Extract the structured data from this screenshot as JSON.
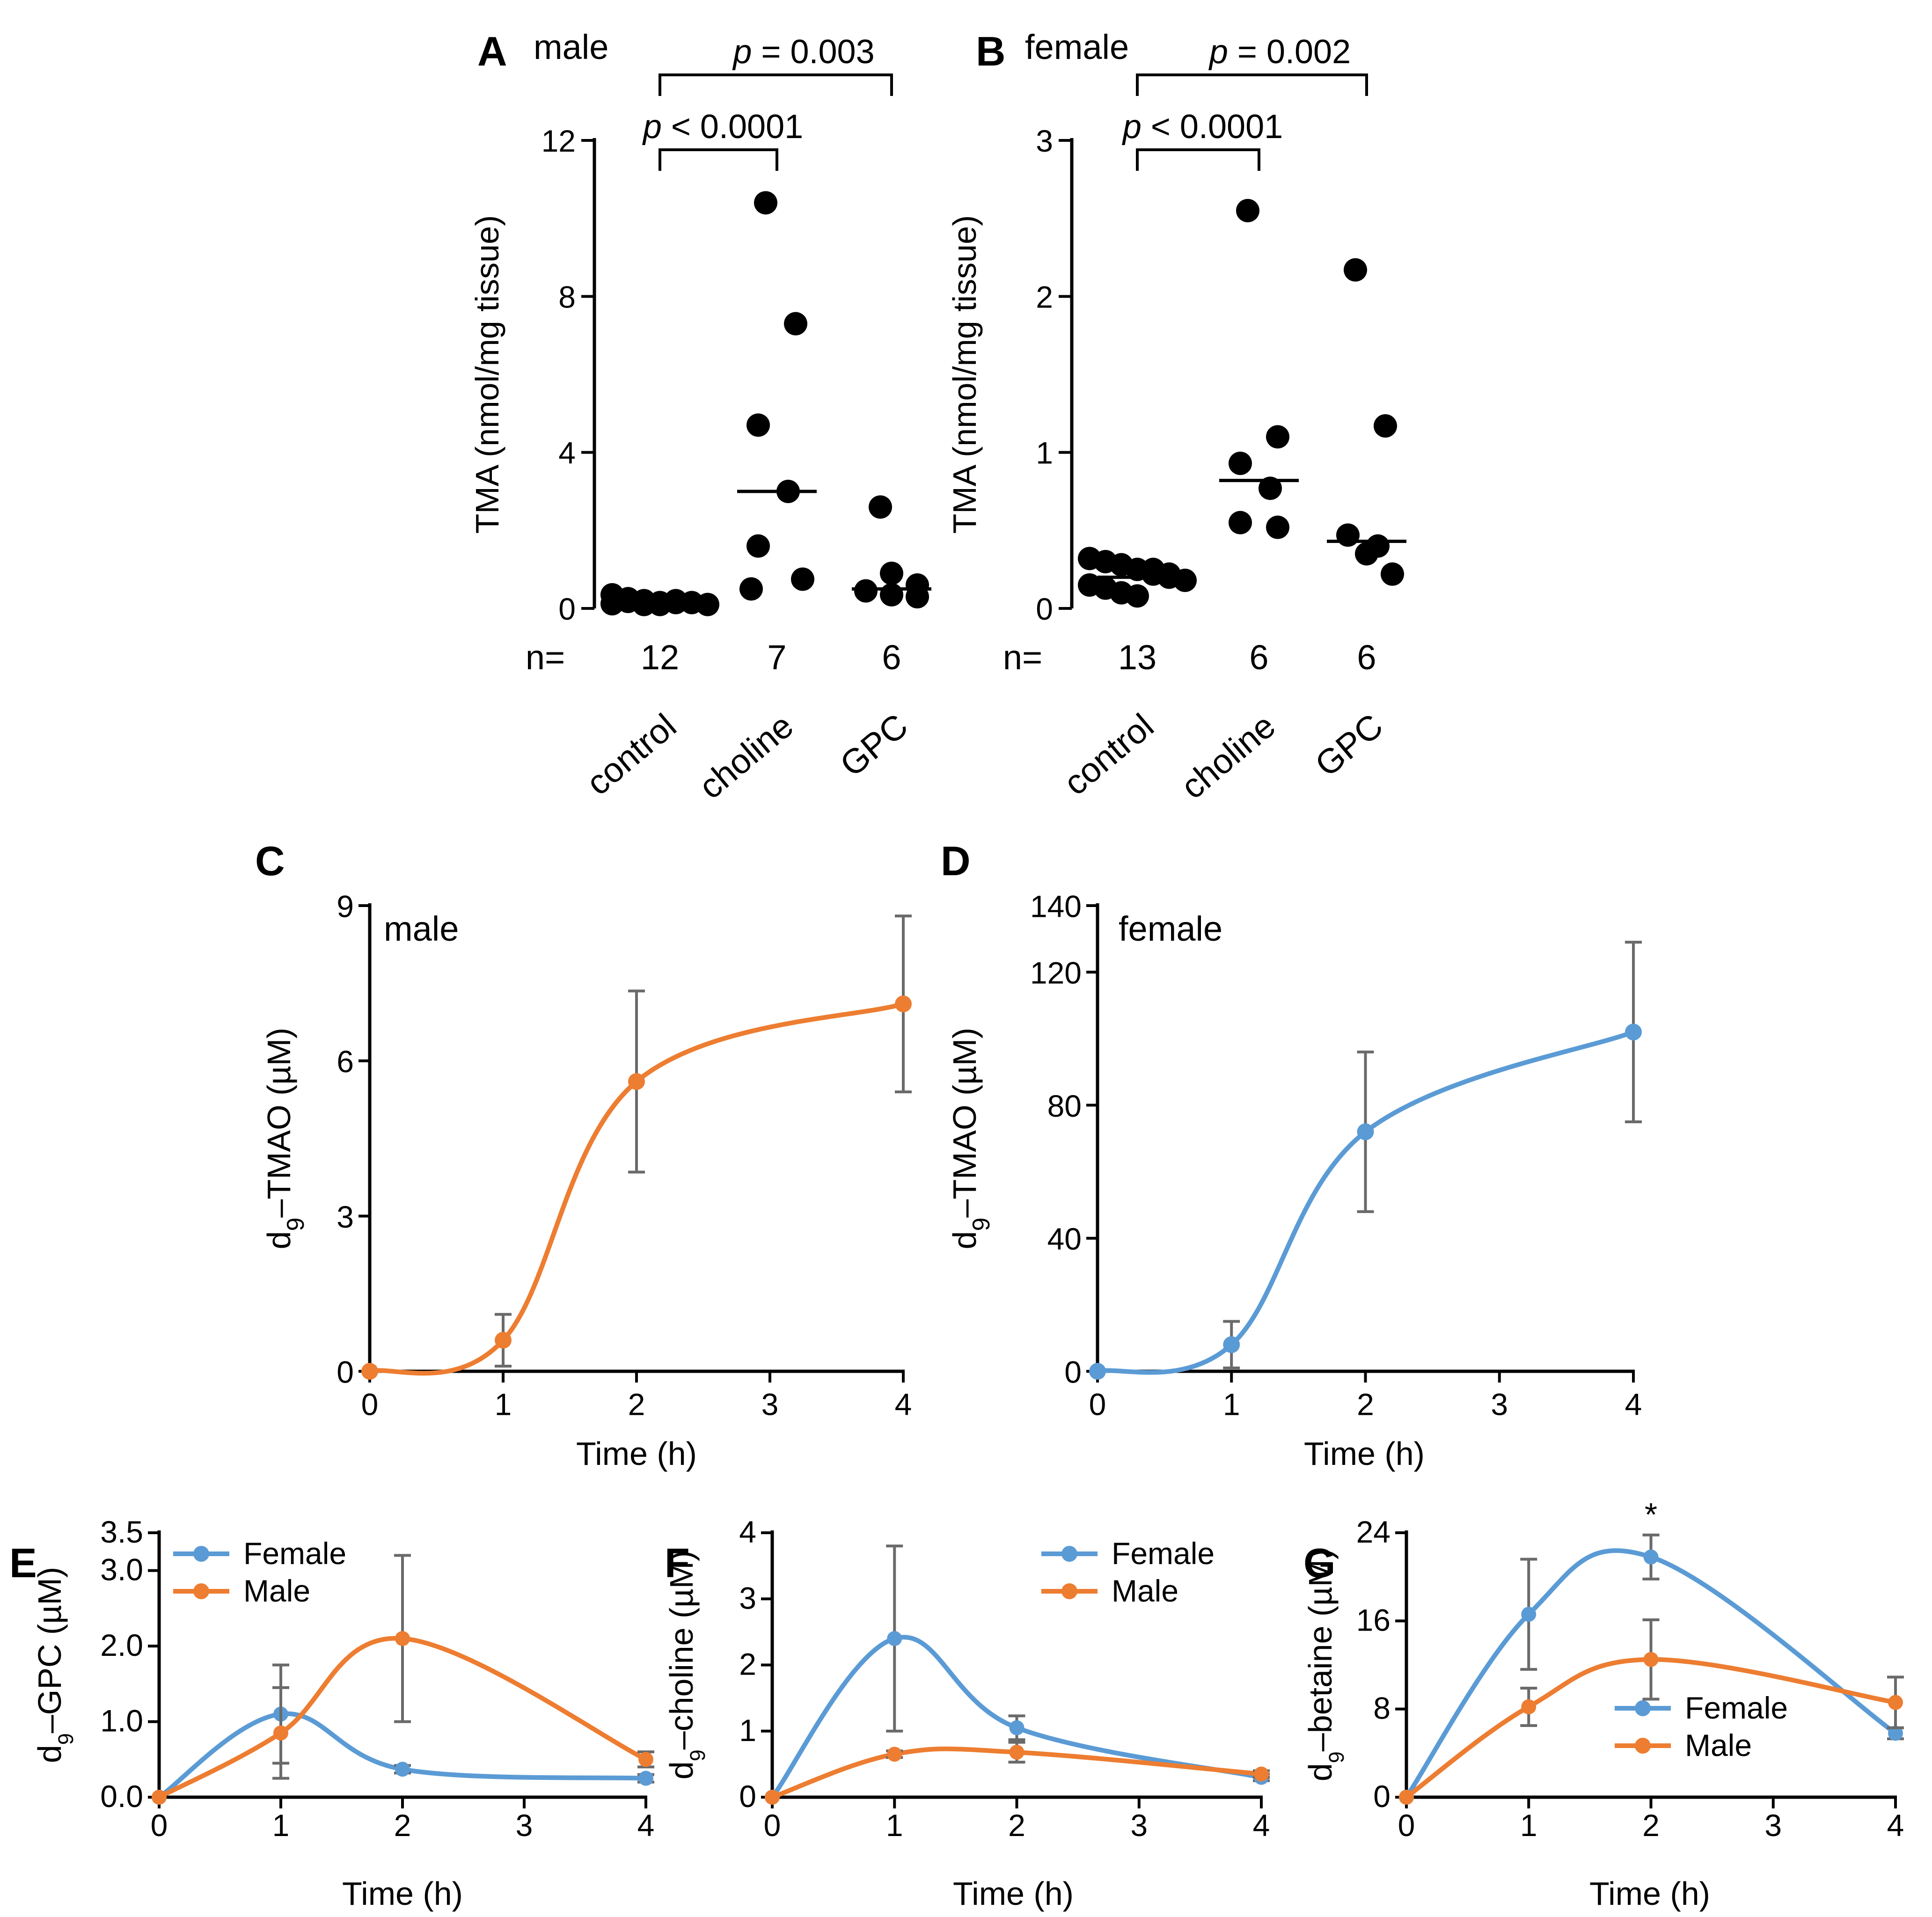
{
  "colors": {
    "female": "#5b9bd5",
    "male": "#ed7d31",
    "dots": "#000000",
    "error": "#6a6a6a"
  },
  "chart_data": [
    {
      "id": "A",
      "type": "scatter",
      "panel_letter": "A",
      "subtitle": "male",
      "ylabel": "TMA (nmol/mg tissue)",
      "ylim": [
        0,
        12
      ],
      "yticks": [
        0,
        4,
        8,
        12
      ],
      "categories": [
        "control",
        "choline",
        "GPC"
      ],
      "n_label": "n=",
      "n": [
        "12",
        "7",
        "6"
      ],
      "points": [
        [
          0.35,
          0.25,
          0.2,
          0.15,
          0.2,
          0.15,
          0.1,
          0.12,
          0.18,
          0.1,
          0.1,
          0.15
        ],
        [
          10.4,
          7.3,
          4.7,
          3.0,
          1.6,
          0.75,
          0.5
        ],
        [
          2.6,
          0.9,
          0.6,
          0.45,
          0.35,
          0.3
        ]
      ],
      "medians": [
        0.15,
        3.0,
        0.5
      ],
      "brackets": [
        {
          "from": 0,
          "to": 1,
          "label": "p < 0.0001"
        },
        {
          "from": 0,
          "to": 2,
          "label": "p = 0.003"
        }
      ]
    },
    {
      "id": "B",
      "type": "scatter",
      "panel_letter": "B",
      "subtitle": "female",
      "ylabel": "TMA (nmol/mg tissue)",
      "ylim": [
        0,
        3
      ],
      "yticks": [
        0,
        1,
        2,
        3
      ],
      "categories": [
        "control",
        "choline",
        "GPC"
      ],
      "n_label": "n=",
      "n": [
        "13",
        "6",
        "6"
      ],
      "points": [
        [
          0.32,
          0.3,
          0.28,
          0.25,
          0.22,
          0.2,
          0.18,
          0.15,
          0.13,
          0.1,
          0.08,
          0.25,
          0.22
        ],
        [
          2.55,
          1.1,
          0.93,
          0.77,
          0.55,
          0.52
        ],
        [
          2.17,
          1.17,
          0.47,
          0.4,
          0.35,
          0.22
        ]
      ],
      "medians": [
        0.2,
        0.82,
        0.43
      ],
      "brackets": [
        {
          "from": 0,
          "to": 1,
          "label": "p < 0.0001"
        },
        {
          "from": 0,
          "to": 2,
          "label": "p = 0.002"
        }
      ]
    },
    {
      "id": "C",
      "type": "line",
      "panel_letter": "C",
      "subtitle": "male",
      "xlabel": "Time (h)",
      "ylabel_main": "d",
      "ylabel_sub": "9",
      "ylabel_rest": "–TMAO (µM)",
      "x": [
        0,
        1,
        2,
        4
      ],
      "xticks": [
        0,
        1,
        2,
        3,
        4
      ],
      "ylim": [
        0,
        9
      ],
      "yticks": [
        0,
        3,
        6,
        9
      ],
      "series": [
        {
          "name": "Male",
          "color": "#ed7d31",
          "values": [
            0,
            0.6,
            5.6,
            7.1
          ],
          "errors": [
            0,
            0.5,
            1.75,
            1.7
          ]
        }
      ]
    },
    {
      "id": "D",
      "type": "line",
      "panel_letter": "D",
      "subtitle": "female",
      "xlabel": "Time (h)",
      "ylabel_main": "d",
      "ylabel_sub": "9",
      "ylabel_rest": "–TMAO (µM)",
      "x": [
        0,
        1,
        2,
        4
      ],
      "xticks": [
        0,
        1,
        2,
        3,
        4
      ],
      "ylim": [
        0,
        140
      ],
      "yticks": [
        0,
        40,
        80,
        120,
        140
      ],
      "series": [
        {
          "name": "Female",
          "color": "#5b9bd5",
          "values": [
            0,
            8,
            72,
            102
          ],
          "errors": [
            0,
            7,
            24,
            27
          ]
        }
      ]
    },
    {
      "id": "E",
      "type": "line",
      "panel_letter": "E",
      "xlabel": "Time (h)",
      "ylabel_main": "d",
      "ylabel_sub": "9",
      "ylabel_rest": "–GPC (µM)",
      "x": [
        0,
        1,
        2,
        4
      ],
      "xticks": [
        0,
        1,
        2,
        3,
        4
      ],
      "ylim": [
        0,
        3.5
      ],
      "yticks": [
        0,
        1,
        2,
        3,
        3.5
      ],
      "ytick_labels": [
        "0.0",
        "1.0",
        "2.0",
        "3.0",
        "3.5"
      ],
      "legend": {
        "position": "top-left",
        "entries": [
          "Female",
          "Male"
        ]
      },
      "series": [
        {
          "name": "Female",
          "color": "#5b9bd5",
          "values": [
            0,
            1.1,
            0.37,
            0.25
          ],
          "errors": [
            0,
            0.65,
            0.05,
            0.05
          ]
        },
        {
          "name": "Male",
          "color": "#ed7d31",
          "values": [
            0,
            0.85,
            2.1,
            0.5
          ],
          "errors": [
            0,
            0.6,
            1.1,
            0.1
          ]
        }
      ]
    },
    {
      "id": "F",
      "type": "line",
      "panel_letter": "F",
      "xlabel": "Time (h)",
      "ylabel_main": "d",
      "ylabel_sub": "9",
      "ylabel_rest": "–choline (µM)",
      "x": [
        0,
        1,
        2,
        4
      ],
      "xticks": [
        0,
        1,
        2,
        3,
        4
      ],
      "ylim": [
        0,
        4
      ],
      "yticks": [
        0,
        1,
        2,
        3,
        4
      ],
      "legend": {
        "position": "top-right",
        "entries": [
          "Female",
          "Male"
        ]
      },
      "series": [
        {
          "name": "Female",
          "color": "#5b9bd5",
          "values": [
            0,
            2.4,
            1.05,
            0.3
          ],
          "errors": [
            0,
            1.4,
            0.18,
            0.05
          ]
        },
        {
          "name": "Male",
          "color": "#ed7d31",
          "values": [
            0,
            0.65,
            0.68,
            0.35
          ],
          "errors": [
            0,
            0.05,
            0.15,
            0.05
          ]
        }
      ]
    },
    {
      "id": "G",
      "type": "line",
      "panel_letter": "G",
      "xlabel": "Time (h)",
      "ylabel_main": "d",
      "ylabel_sub": "9",
      "ylabel_rest": "–betaine (µM)",
      "x": [
        0,
        1,
        2,
        4
      ],
      "xticks": [
        0,
        1,
        2,
        3,
        4
      ],
      "ylim": [
        0,
        24
      ],
      "yticks": [
        0,
        8,
        16,
        24
      ],
      "legend": {
        "position": "bottom-right",
        "entries": [
          "Female",
          "Male"
        ]
      },
      "annotation": {
        "text": "*",
        "x": 2
      },
      "series": [
        {
          "name": "Female",
          "color": "#5b9bd5",
          "values": [
            0,
            16.6,
            21.8,
            5.8
          ],
          "errors": [
            0,
            5,
            2,
            0.5
          ]
        },
        {
          "name": "Male",
          "color": "#ed7d31",
          "values": [
            0,
            8.2,
            12.5,
            8.6
          ],
          "errors": [
            0,
            1.7,
            3.6,
            2.3
          ]
        }
      ]
    }
  ]
}
